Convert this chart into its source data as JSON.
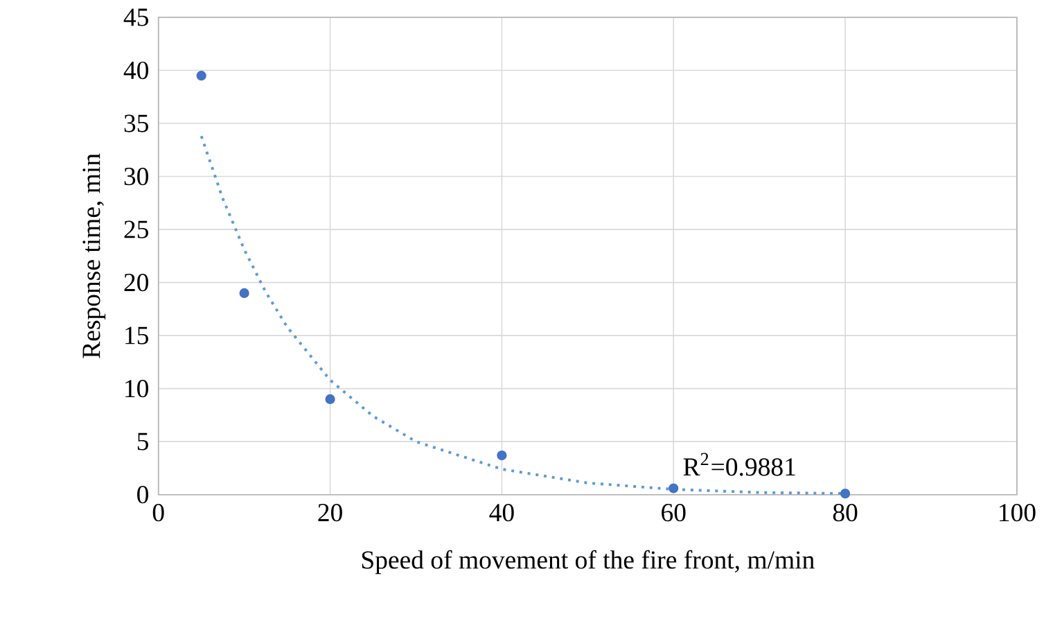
{
  "chart_data": {
    "type": "scatter",
    "xlabel": "Speed of movement of the fire front, m/min",
    "ylabel": "Response time, min",
    "xlim": [
      0,
      100
    ],
    "ylim": [
      0,
      45
    ],
    "xticks": [
      0,
      20,
      40,
      60,
      80,
      100
    ],
    "yticks": [
      0,
      5,
      10,
      15,
      20,
      25,
      30,
      35,
      40,
      45
    ],
    "grid": true,
    "series": [
      {
        "color": "#4472c4",
        "marker": "circle",
        "x": [
          5,
          10,
          20,
          40,
          60,
          80
        ],
        "values": [
          39.5,
          19,
          9,
          3.7,
          0.6,
          0.1
        ]
      },
      {
        "type": "line",
        "color": "#5b9bd5",
        "line_style": "dotted",
        "marker": "none",
        "x": [
          5,
          7.5,
          10,
          12.5,
          15,
          20,
          25,
          30,
          40,
          50,
          60,
          70,
          80
        ],
        "values": [
          33.8,
          27.9,
          23.1,
          19.1,
          15.8,
          10.8,
          7.4,
          5,
          2.4,
          1.1,
          0.5,
          0.2,
          0.1
        ]
      }
    ],
    "annotations": [
      "R$^{2}$=0.9881"
    ]
  }
}
